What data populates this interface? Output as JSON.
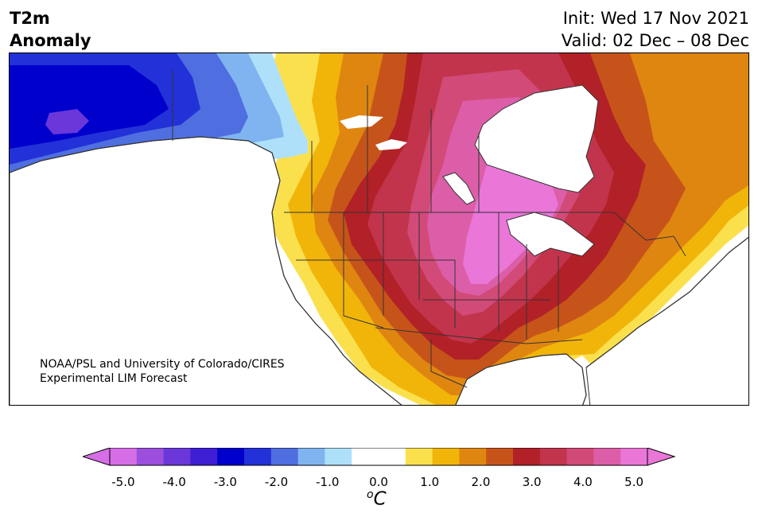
{
  "header": {
    "title_line1": "T2m",
    "title_line2": "Anomaly",
    "init_line": "Init: Wed 17 Nov 2021",
    "valid_line": "Valid: 02 Dec – 08 Dec"
  },
  "credit": {
    "line1": "NOAA/PSL and University of Colorado/CIRES",
    "line2": "Experimental LIM Forecast"
  },
  "colorbar": {
    "unit_sup": "o",
    "unit": "C",
    "ticks": [
      "-5.0",
      "-4.0",
      "-3.0",
      "-2.0",
      "-1.0",
      "0.0",
      "1.0",
      "2.0",
      "3.0",
      "4.0",
      "5.0"
    ],
    "colors": [
      "#d66ee6",
      "#9b4fdc",
      "#6b37d9",
      "#3d1ed2",
      "#0000cc",
      "#2331d8",
      "#4f6fe0",
      "#7fb4f0",
      "#aee0fa",
      "#ffffff",
      "#ffffff",
      "#fbe04e",
      "#f1b50a",
      "#df8611",
      "#c6541a",
      "#b22127",
      "#c2344c",
      "#d24a78",
      "#dc5ea8",
      "#ea76d8"
    ],
    "min_color": "#d66ee6",
    "max_color": "#ea76d8"
  },
  "map": {
    "region": "North America",
    "variable": "2-meter temperature anomaly"
  }
}
